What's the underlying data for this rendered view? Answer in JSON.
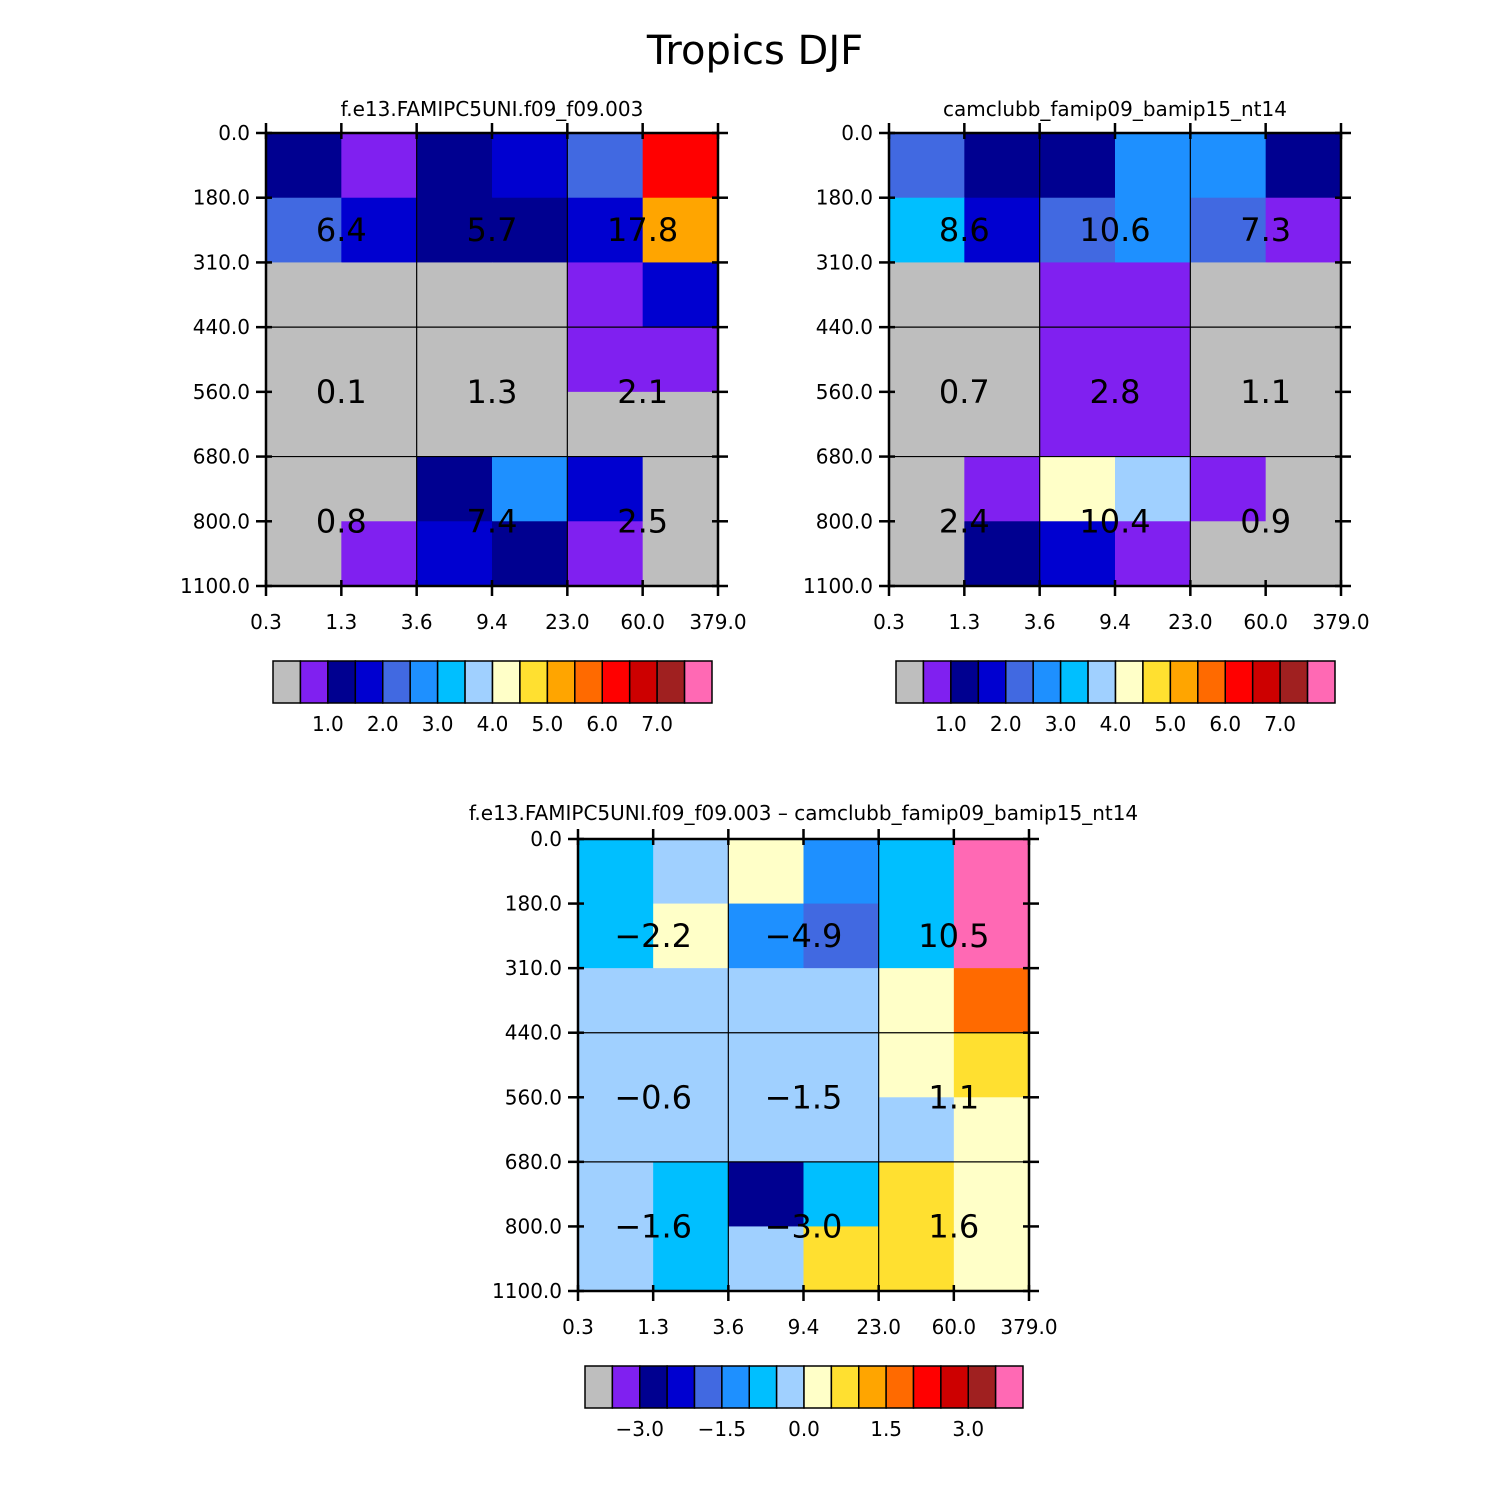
{
  "title": "Tropics DJF",
  "palette": [
    "#bebebe",
    "#8020f0",
    "#000090",
    "#0000d0",
    "#4169e1",
    "#1e90ff",
    "#00bfff",
    "#a0d0ff",
    "#ffffc8",
    "#ffe030",
    "#ffa500",
    "#ff6a00",
    "#ff0000",
    "#cd0000",
    "#a02020",
    "#ff69b4"
  ],
  "chart_data": [
    {
      "type": "heatmap",
      "title": "f.e13.FAMIPC5UNI.f09_f09.003",
      "x_ticks": [
        "0.3",
        "1.3",
        "3.6",
        "9.4",
        "23.0",
        "60.0",
        "379.0"
      ],
      "y_ticks": [
        "0.0",
        "180.0",
        "310.0",
        "440.0",
        "560.0",
        "680.0",
        "800.0",
        "1100.0"
      ],
      "cell_colors": [
        [
          2,
          1,
          2,
          3,
          4,
          12
        ],
        [
          4,
          3,
          2,
          2,
          3,
          10
        ],
        [
          0,
          0,
          0,
          0,
          1,
          3
        ],
        [
          0,
          0,
          0,
          0,
          1,
          1
        ],
        [
          0,
          0,
          0,
          0,
          0,
          0
        ],
        [
          0,
          0,
          2,
          5,
          3,
          0
        ],
        [
          0,
          1,
          3,
          2,
          1,
          0
        ]
      ],
      "block_values": [
        [
          "6.4",
          "5.7",
          "17.8"
        ],
        [
          "0.1",
          "1.3",
          "2.1"
        ],
        [
          "0.8",
          "7.4",
          "2.5"
        ]
      ],
      "colorbar_labels": [
        "1.0",
        "2.0",
        "3.0",
        "4.0",
        "5.0",
        "6.0",
        "7.0"
      ],
      "colorbar_levels": [
        0.5,
        1.0,
        1.5,
        2.0,
        2.5,
        3.0,
        3.5,
        4.0,
        4.5,
        5.0,
        5.5,
        6.0,
        6.5,
        7.0,
        7.5
      ]
    },
    {
      "type": "heatmap",
      "title": "camclubb_famip09_bamip15_nt14",
      "x_ticks": [
        "0.3",
        "1.3",
        "3.6",
        "9.4",
        "23.0",
        "60.0",
        "379.0"
      ],
      "y_ticks": [
        "0.0",
        "180.0",
        "310.0",
        "440.0",
        "560.0",
        "680.0",
        "800.0",
        "1100.0"
      ],
      "cell_colors": [
        [
          4,
          2,
          2,
          5,
          5,
          2
        ],
        [
          6,
          3,
          4,
          5,
          4,
          1
        ],
        [
          0,
          0,
          1,
          1,
          0,
          0
        ],
        [
          0,
          0,
          1,
          1,
          0,
          0
        ],
        [
          0,
          0,
          1,
          1,
          0,
          0
        ],
        [
          0,
          1,
          8,
          7,
          1,
          0
        ],
        [
          0,
          2,
          3,
          1,
          0,
          0
        ]
      ],
      "block_values": [
        [
          "8.6",
          "10.6",
          "7.3"
        ],
        [
          "0.7",
          "2.8",
          "1.1"
        ],
        [
          "2.4",
          "10.4",
          "0.9"
        ]
      ],
      "colorbar_labels": [
        "1.0",
        "2.0",
        "3.0",
        "4.0",
        "5.0",
        "6.0",
        "7.0"
      ],
      "colorbar_levels": [
        0.5,
        1.0,
        1.5,
        2.0,
        2.5,
        3.0,
        3.5,
        4.0,
        4.5,
        5.0,
        5.5,
        6.0,
        6.5,
        7.0,
        7.5
      ]
    },
    {
      "type": "heatmap",
      "title": "f.e13.FAMIPC5UNI.f09_f09.003 – camclubb_famip09_bamip15_nt14",
      "x_ticks": [
        "0.3",
        "1.3",
        "3.6",
        "9.4",
        "23.0",
        "60.0",
        "379.0"
      ],
      "y_ticks": [
        "0.0",
        "180.0",
        "310.0",
        "440.0",
        "560.0",
        "680.0",
        "800.0",
        "1100.0"
      ],
      "cell_colors": [
        [
          6,
          7,
          8,
          5,
          6,
          15
        ],
        [
          6,
          8,
          5,
          4,
          6,
          15
        ],
        [
          7,
          7,
          7,
          7,
          8,
          11
        ],
        [
          7,
          7,
          7,
          7,
          8,
          9
        ],
        [
          7,
          7,
          7,
          7,
          7,
          8
        ],
        [
          7,
          6,
          2,
          6,
          9,
          8
        ],
        [
          7,
          6,
          7,
          9,
          9,
          8
        ]
      ],
      "block_values": [
        [
          "−2.2",
          "−4.9",
          "10.5"
        ],
        [
          "−0.6",
          "−1.5",
          "1.1"
        ],
        [
          "−1.6",
          "−3.0",
          "1.6"
        ]
      ],
      "colorbar_labels": [
        "−3.0",
        "−1.5",
        "0.0",
        "1.5",
        "3.0"
      ],
      "colorbar_levels": [
        -3.5,
        -3.0,
        -2.5,
        -2.0,
        -1.5,
        -1.0,
        -0.5,
        0.0,
        0.5,
        1.0,
        1.5,
        2.0,
        2.5,
        3.0,
        3.5
      ]
    }
  ]
}
